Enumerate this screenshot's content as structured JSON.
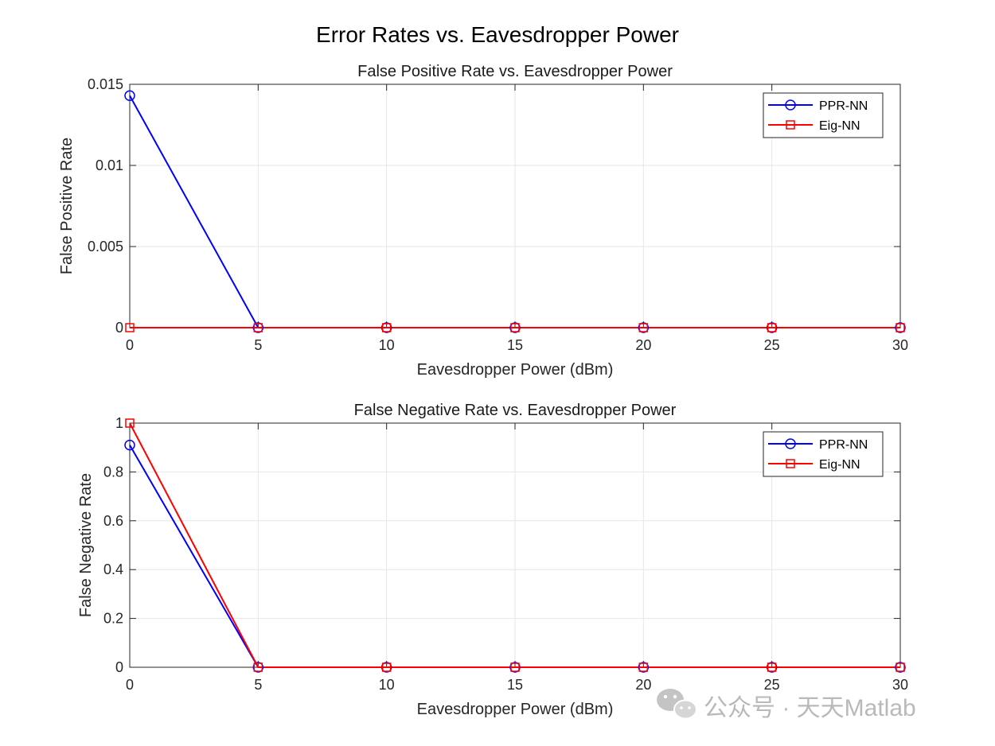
{
  "figure": {
    "title": "Error Rates vs. Eavesdropper Power"
  },
  "watermark": {
    "text": "公众号 · 天天Matlab",
    "icon": "wechat-icon"
  },
  "colors": {
    "PPR-NN": "#0000ff",
    "Eig-NN": "#ff0000",
    "grid": "#e6e6e6",
    "axes": "#262626"
  },
  "chart_data": [
    {
      "type": "line",
      "title": "False Positive Rate vs. Eavesdropper Power",
      "xlabel": "Eavesdropper Power (dBm)",
      "ylabel": "False Positive Rate",
      "x": [
        0,
        5,
        10,
        15,
        20,
        25,
        30
      ],
      "xlim": [
        0,
        30
      ],
      "ylim": [
        0,
        0.015
      ],
      "xticks": [
        0,
        5,
        10,
        15,
        20,
        25,
        30
      ],
      "yticks": [
        0,
        0.005,
        0.01,
        0.015
      ],
      "ytick_labels": [
        "0",
        "0.005",
        "0.01",
        "0.015"
      ],
      "grid": true,
      "legend_position": "top-right",
      "series": [
        {
          "name": "PPR-NN",
          "marker": "circle",
          "color": "#0000ff",
          "values": [
            0.0143,
            0,
            0,
            0,
            0,
            0,
            0
          ]
        },
        {
          "name": "Eig-NN",
          "marker": "square",
          "color": "#ff0000",
          "values": [
            0,
            0,
            0,
            0,
            0,
            0,
            0
          ]
        }
      ]
    },
    {
      "type": "line",
      "title": "False Negative Rate vs. Eavesdropper Power",
      "xlabel": "Eavesdropper Power (dBm)",
      "ylabel": "False Negative Rate",
      "x": [
        0,
        5,
        10,
        15,
        20,
        25,
        30
      ],
      "xlim": [
        0,
        30
      ],
      "ylim": [
        0,
        1
      ],
      "xticks": [
        0,
        5,
        10,
        15,
        20,
        25,
        30
      ],
      "yticks": [
        0,
        0.2,
        0.4,
        0.6,
        0.8,
        1
      ],
      "ytick_labels": [
        "0",
        "0.2",
        "0.4",
        "0.6",
        "0.8",
        "1"
      ],
      "grid": true,
      "legend_position": "top-right",
      "series": [
        {
          "name": "PPR-NN",
          "marker": "circle",
          "color": "#0000ff",
          "values": [
            0.91,
            0,
            0,
            0,
            0,
            0,
            0
          ]
        },
        {
          "name": "Eig-NN",
          "marker": "square",
          "color": "#ff0000",
          "values": [
            1.0,
            0,
            0,
            0,
            0,
            0,
            0
          ]
        }
      ]
    }
  ]
}
